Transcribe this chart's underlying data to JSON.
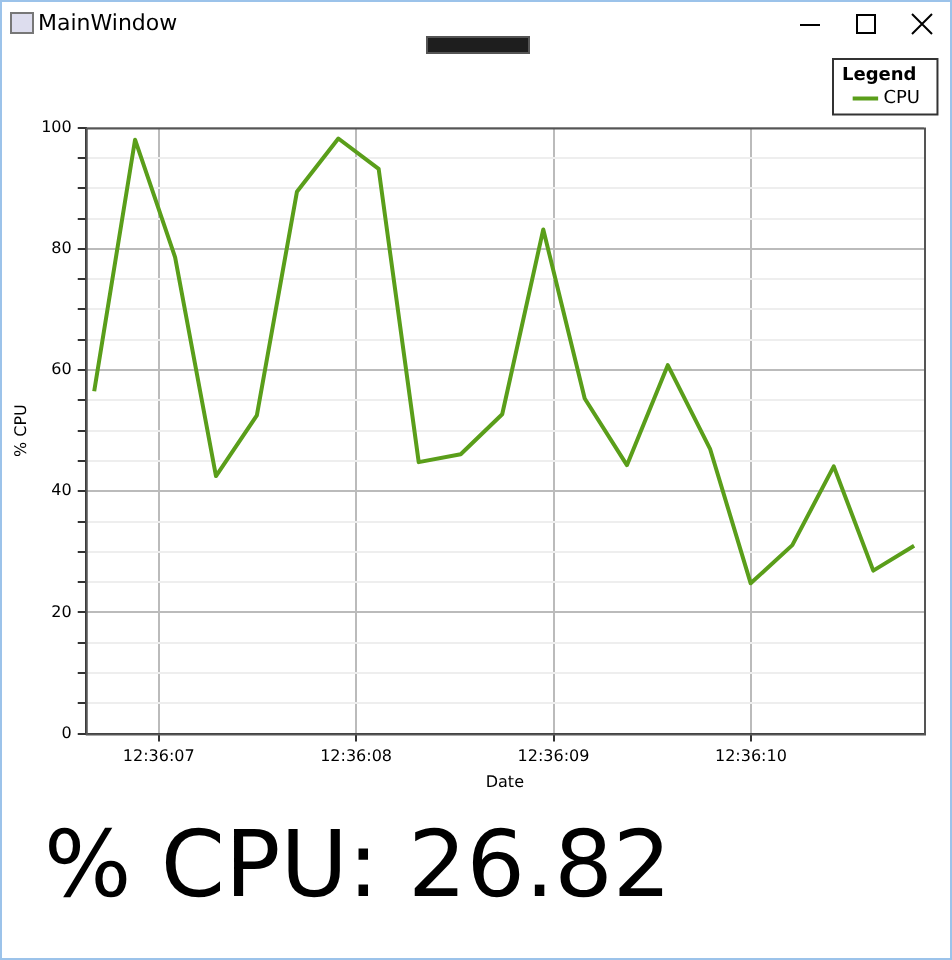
{
  "chart_data": {
    "type": "line",
    "xlabel": "Date",
    "ylabel": "% CPU",
    "legend_title": "Legend",
    "legend": "top right",
    "grid": true,
    "marker": "none",
    "line_style": "solid",
    "annotations": [
      "MainWindow",
      "% CPU: 26.82"
    ],
    "xlim": [
      12.6018417,
      12.6030214
    ],
    "xticks": [
      {
        "value": 12.6019444,
        "label": "12:36:07"
      },
      {
        "value": 12.6022222,
        "label": "12:36:08"
      },
      {
        "value": 12.6025,
        "label": "12:36:09"
      },
      {
        "value": 12.6027778,
        "label": "12:36:10"
      }
    ],
    "ylim": [
      0,
      100
    ],
    "yticks": [
      0,
      {
        "value": 5,
        "label": null
      },
      {
        "value": 10,
        "label": null
      },
      {
        "value": 15,
        "label": null
      },
      20,
      {
        "value": 25,
        "label": null
      },
      {
        "value": 30,
        "label": null
      },
      {
        "value": 35,
        "label": null
      },
      40,
      {
        "value": 45,
        "label": null
      },
      {
        "value": 50,
        "label": null
      },
      {
        "value": 55,
        "label": null
      },
      60,
      {
        "value": 65,
        "label": null
      },
      {
        "value": 70,
        "label": null
      },
      {
        "value": 75,
        "label": null
      },
      80,
      {
        "value": 85,
        "label": null
      },
      {
        "value": 90,
        "label": null
      },
      {
        "value": 95,
        "label": null
      },
      100
    ],
    "x": [
      12.6018536,
      12.6019111,
      12.6019675,
      12.602025,
      12.6020825,
      12.6021389,
      12.6021972,
      12.6022539,
      12.6023103,
      12.6023694,
      12.6024278,
      12.6024856,
      12.6025439,
      12.6026033,
      12.6026608,
      12.6027203,
      12.6027775,
      12.6028361,
      12.6028944,
      12.60295,
      12.6030075
    ],
    "series": [
      {
        "name": "CPU",
        "color": "#5a9e1a",
        "values": [
          56.5,
          98,
          78.6,
          42.5,
          52.5,
          89.4,
          98.2,
          93.2,
          44.8,
          46.1,
          52.7,
          83.2,
          55.3,
          44.3,
          60.8,
          47,
          24.8,
          31.1,
          44.1,
          26.9,
          31
        ]
      }
    ]
  }
}
